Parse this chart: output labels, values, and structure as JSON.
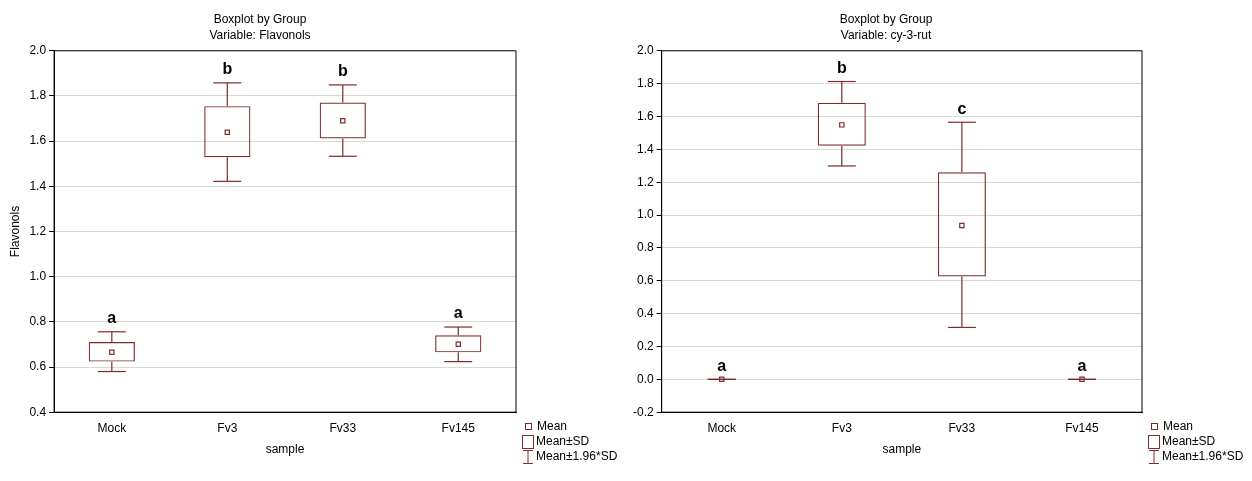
{
  "chart_data": [
    {
      "type": "box",
      "title": "Boxplot by Group",
      "subtitle": "Variable: Flavonols",
      "xlabel": "sample",
      "ylabel": "Flavonols",
      "categories": [
        "Mock",
        "Fv3",
        "Fv33",
        "Fv145"
      ],
      "color": "#7b2c2c",
      "grid": "y",
      "boxes": [
        {
          "low": 0.58,
          "q1": 0.624,
          "q3": 0.711,
          "high": 0.756,
          "mean": 0.665
        },
        {
          "low": 1.422,
          "q1": 1.529,
          "q3": 1.755,
          "high": 1.858,
          "mean": 1.639
        },
        {
          "low": 1.533,
          "q1": 1.612,
          "q3": 1.771,
          "high": 1.849,
          "mean": 1.69
        },
        {
          "low": 0.624,
          "q1": 0.665,
          "q3": 0.741,
          "high": 0.777,
          "mean": 0.701
        }
      ],
      "ylim": [
        0.4,
        2.0
      ],
      "yticks": [
        {
          "value": 0.4,
          "label": "0.4"
        },
        {
          "value": 0.6,
          "label": "0.6"
        },
        {
          "value": 0.8,
          "label": "0.8"
        },
        {
          "value": 1,
          "label": "1.0"
        },
        {
          "value": 1.2,
          "label": "1.2"
        },
        {
          "value": 1.4,
          "label": "1.4"
        },
        {
          "value": 1.6,
          "label": "1.6"
        },
        {
          "value": 1.8,
          "label": "1.8"
        },
        {
          "value": 2,
          "label": "2.0"
        }
      ],
      "annotations": [
        "a",
        "b",
        "b",
        "a",
        "Mean",
        "Mean±SD",
        "Mean±1.96*SD"
      ]
    },
    {
      "type": "box",
      "title": "Boxplot by Group",
      "subtitle": "Variable: cy-3-rut",
      "xlabel": "sample",
      "categories": [
        "Mock",
        "Fv3",
        "Fv33",
        "Fv145"
      ],
      "color": "#7b2c2c",
      "grid": "y",
      "boxes": [
        {
          "low": 0,
          "q1": 0,
          "q3": 0,
          "high": 0,
          "mean": 0
        },
        {
          "low": 1.299,
          "q1": 1.422,
          "q3": 1.684,
          "high": 1.813,
          "mean": 1.549
        },
        {
          "low": 0.316,
          "q1": 0.626,
          "q3": 1.261,
          "high": 1.565,
          "mean": 0.937
        },
        {
          "low": 0,
          "q1": 0,
          "q3": 0,
          "high": 0,
          "mean": 0
        }
      ],
      "ylim": [
        -0.2,
        2.0
      ],
      "yticks": [
        {
          "value": -0.2,
          "label": "-0.2"
        },
        {
          "value": 0,
          "label": "0.0"
        },
        {
          "value": 0.2,
          "label": "0.2"
        },
        {
          "value": 0.4,
          "label": "0.4"
        },
        {
          "value": 0.6,
          "label": "0.6"
        },
        {
          "value": 0.8,
          "label": "0.8"
        },
        {
          "value": 1,
          "label": "1.0"
        },
        {
          "value": 1.2,
          "label": "1.2"
        },
        {
          "value": 1.4,
          "label": "1.4"
        },
        {
          "value": 1.6,
          "label": "1.6"
        },
        {
          "value": 1.8,
          "label": "1.8"
        },
        {
          "value": 2,
          "label": "2.0"
        }
      ],
      "annotations": [
        "a",
        "b",
        "c",
        "a",
        "Mean",
        "Mean±SD",
        "Mean±1.96*SD"
      ]
    }
  ]
}
